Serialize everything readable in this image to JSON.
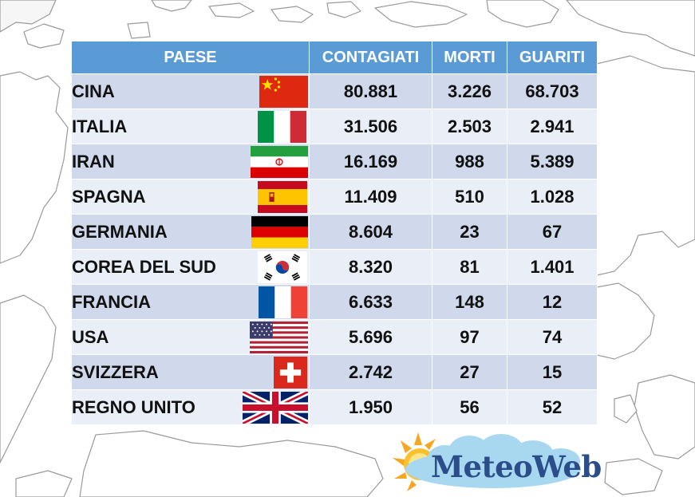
{
  "table": {
    "headers": {
      "country": "PAESE",
      "infected": "CONTAGIATI",
      "deaths": "MORTI",
      "recovered": "GUARITI"
    },
    "rows": [
      {
        "country": "CINA",
        "infected": "80.881",
        "deaths": "3.226",
        "recovered": "68.703",
        "flag": "china-flag-icon"
      },
      {
        "country": "ITALIA",
        "infected": "31.506",
        "deaths": "2.503",
        "recovered": "2.941",
        "flag": "italy-flag-icon"
      },
      {
        "country": "IRAN",
        "infected": "16.169",
        "deaths": "988",
        "recovered": "5.389",
        "flag": "iran-flag-icon"
      },
      {
        "country": "SPAGNA",
        "infected": "11.409",
        "deaths": "510",
        "recovered": "1.028",
        "flag": "spain-flag-icon"
      },
      {
        "country": "GERMANIA",
        "infected": "8.604",
        "deaths": "23",
        "recovered": "67",
        "flag": "germany-flag-icon"
      },
      {
        "country": "COREA DEL SUD",
        "infected": "8.320",
        "deaths": "81",
        "recovered": "1.401",
        "flag": "south-korea-flag-icon"
      },
      {
        "country": "FRANCIA",
        "infected": "6.633",
        "deaths": "148",
        "recovered": "12",
        "flag": "france-flag-icon"
      },
      {
        "country": "USA",
        "infected": "5.696",
        "deaths": "97",
        "recovered": "74",
        "flag": "usa-flag-icon"
      },
      {
        "country": "SVIZZERA",
        "infected": "2.742",
        "deaths": "27",
        "recovered": "15",
        "flag": "switzerland-flag-icon"
      },
      {
        "country": "REGNO UNITO",
        "infected": "1.950",
        "deaths": "56",
        "recovered": "52",
        "flag": "uk-flag-icon"
      }
    ]
  },
  "logo": {
    "text": "MeteoWeb",
    "icon": "sun-cloud-icon"
  },
  "colors": {
    "header": "#5b9bd5",
    "row_dark": "#cfd9eb",
    "row_light": "#e9eef7",
    "logo_text": "#2b4d8a"
  },
  "background": {
    "icon": "world-map-outline"
  }
}
